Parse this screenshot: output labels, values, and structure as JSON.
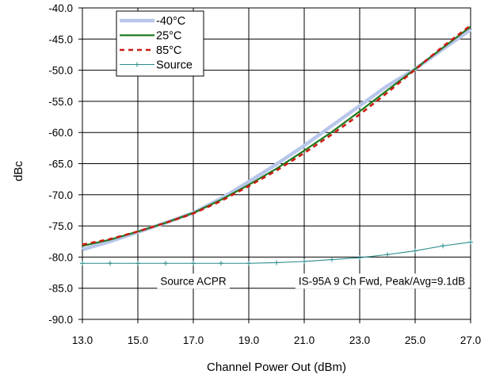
{
  "chart_data": {
    "type": "line",
    "title": "",
    "xlabel": "Channel Power Out (dBm)",
    "ylabel": "dBc",
    "xlim": [
      13.0,
      27.0
    ],
    "ylim": [
      -90.0,
      -40.0
    ],
    "x_ticks": [
      "13.0",
      "15.0",
      "17.0",
      "19.0",
      "21.0",
      "23.0",
      "25.0",
      "27.0"
    ],
    "y_ticks": [
      "-40.0",
      "-45.0",
      "-50.0",
      "-55.0",
      "-60.0",
      "-65.0",
      "-70.0",
      "-75.0",
      "-80.0",
      "-85.0",
      "-90.0"
    ],
    "grid": true,
    "legend_position": "top-left",
    "series": [
      {
        "name": "-40°C",
        "color": "#b8c6ea",
        "x": [
          13,
          14,
          15,
          16,
          17,
          18,
          19,
          20,
          21,
          22,
          23,
          24,
          25,
          26,
          27
        ],
        "y": [
          -78.8,
          -77.5,
          -76.0,
          -74.5,
          -72.9,
          -70.6,
          -67.9,
          -65.1,
          -62.1,
          -58.9,
          -55.7,
          -52.5,
          -49.8,
          -46.6,
          -43.5
        ]
      },
      {
        "name": "25°C",
        "color": "#1e7a1e",
        "x": [
          13,
          14,
          15,
          16,
          17,
          18,
          19,
          20,
          21,
          22,
          23,
          24,
          25,
          26,
          27
        ],
        "y": [
          -78.2,
          -77.2,
          -75.9,
          -74.5,
          -72.9,
          -70.8,
          -68.4,
          -65.8,
          -62.9,
          -59.9,
          -56.6,
          -53.2,
          -49.8,
          -46.4,
          -43.0
        ]
      },
      {
        "name": "85°C",
        "color": "#cc1a12",
        "x": [
          13,
          14,
          15,
          16,
          17,
          18,
          19,
          20,
          21,
          22,
          23,
          24,
          25,
          26,
          27
        ],
        "y": [
          -78.0,
          -77.1,
          -75.9,
          -74.5,
          -73.0,
          -71.0,
          -68.6,
          -66.1,
          -63.3,
          -60.3,
          -57.1,
          -53.6,
          -49.9,
          -46.2,
          -42.8
        ]
      },
      {
        "name": "Source",
        "color": "#2a8a8c",
        "x": [
          13,
          14,
          15,
          16,
          17,
          18,
          19,
          20,
          21,
          22,
          23,
          24,
          25,
          26,
          27
        ],
        "y": [
          -81.0,
          -81.0,
          -81.0,
          -81.0,
          -81.0,
          -81.0,
          -81.0,
          -80.9,
          -80.7,
          -80.4,
          -80.1,
          -79.6,
          -79.0,
          -78.2,
          -77.6
        ]
      }
    ],
    "annotations": [
      {
        "text": "Source ACPR",
        "x": 17.0,
        "y": -83.8
      },
      {
        "text": "IS-95A 9 Ch Fwd, Peak/Avg=9.1dB",
        "x": 23.8,
        "y": -83.8
      }
    ]
  }
}
